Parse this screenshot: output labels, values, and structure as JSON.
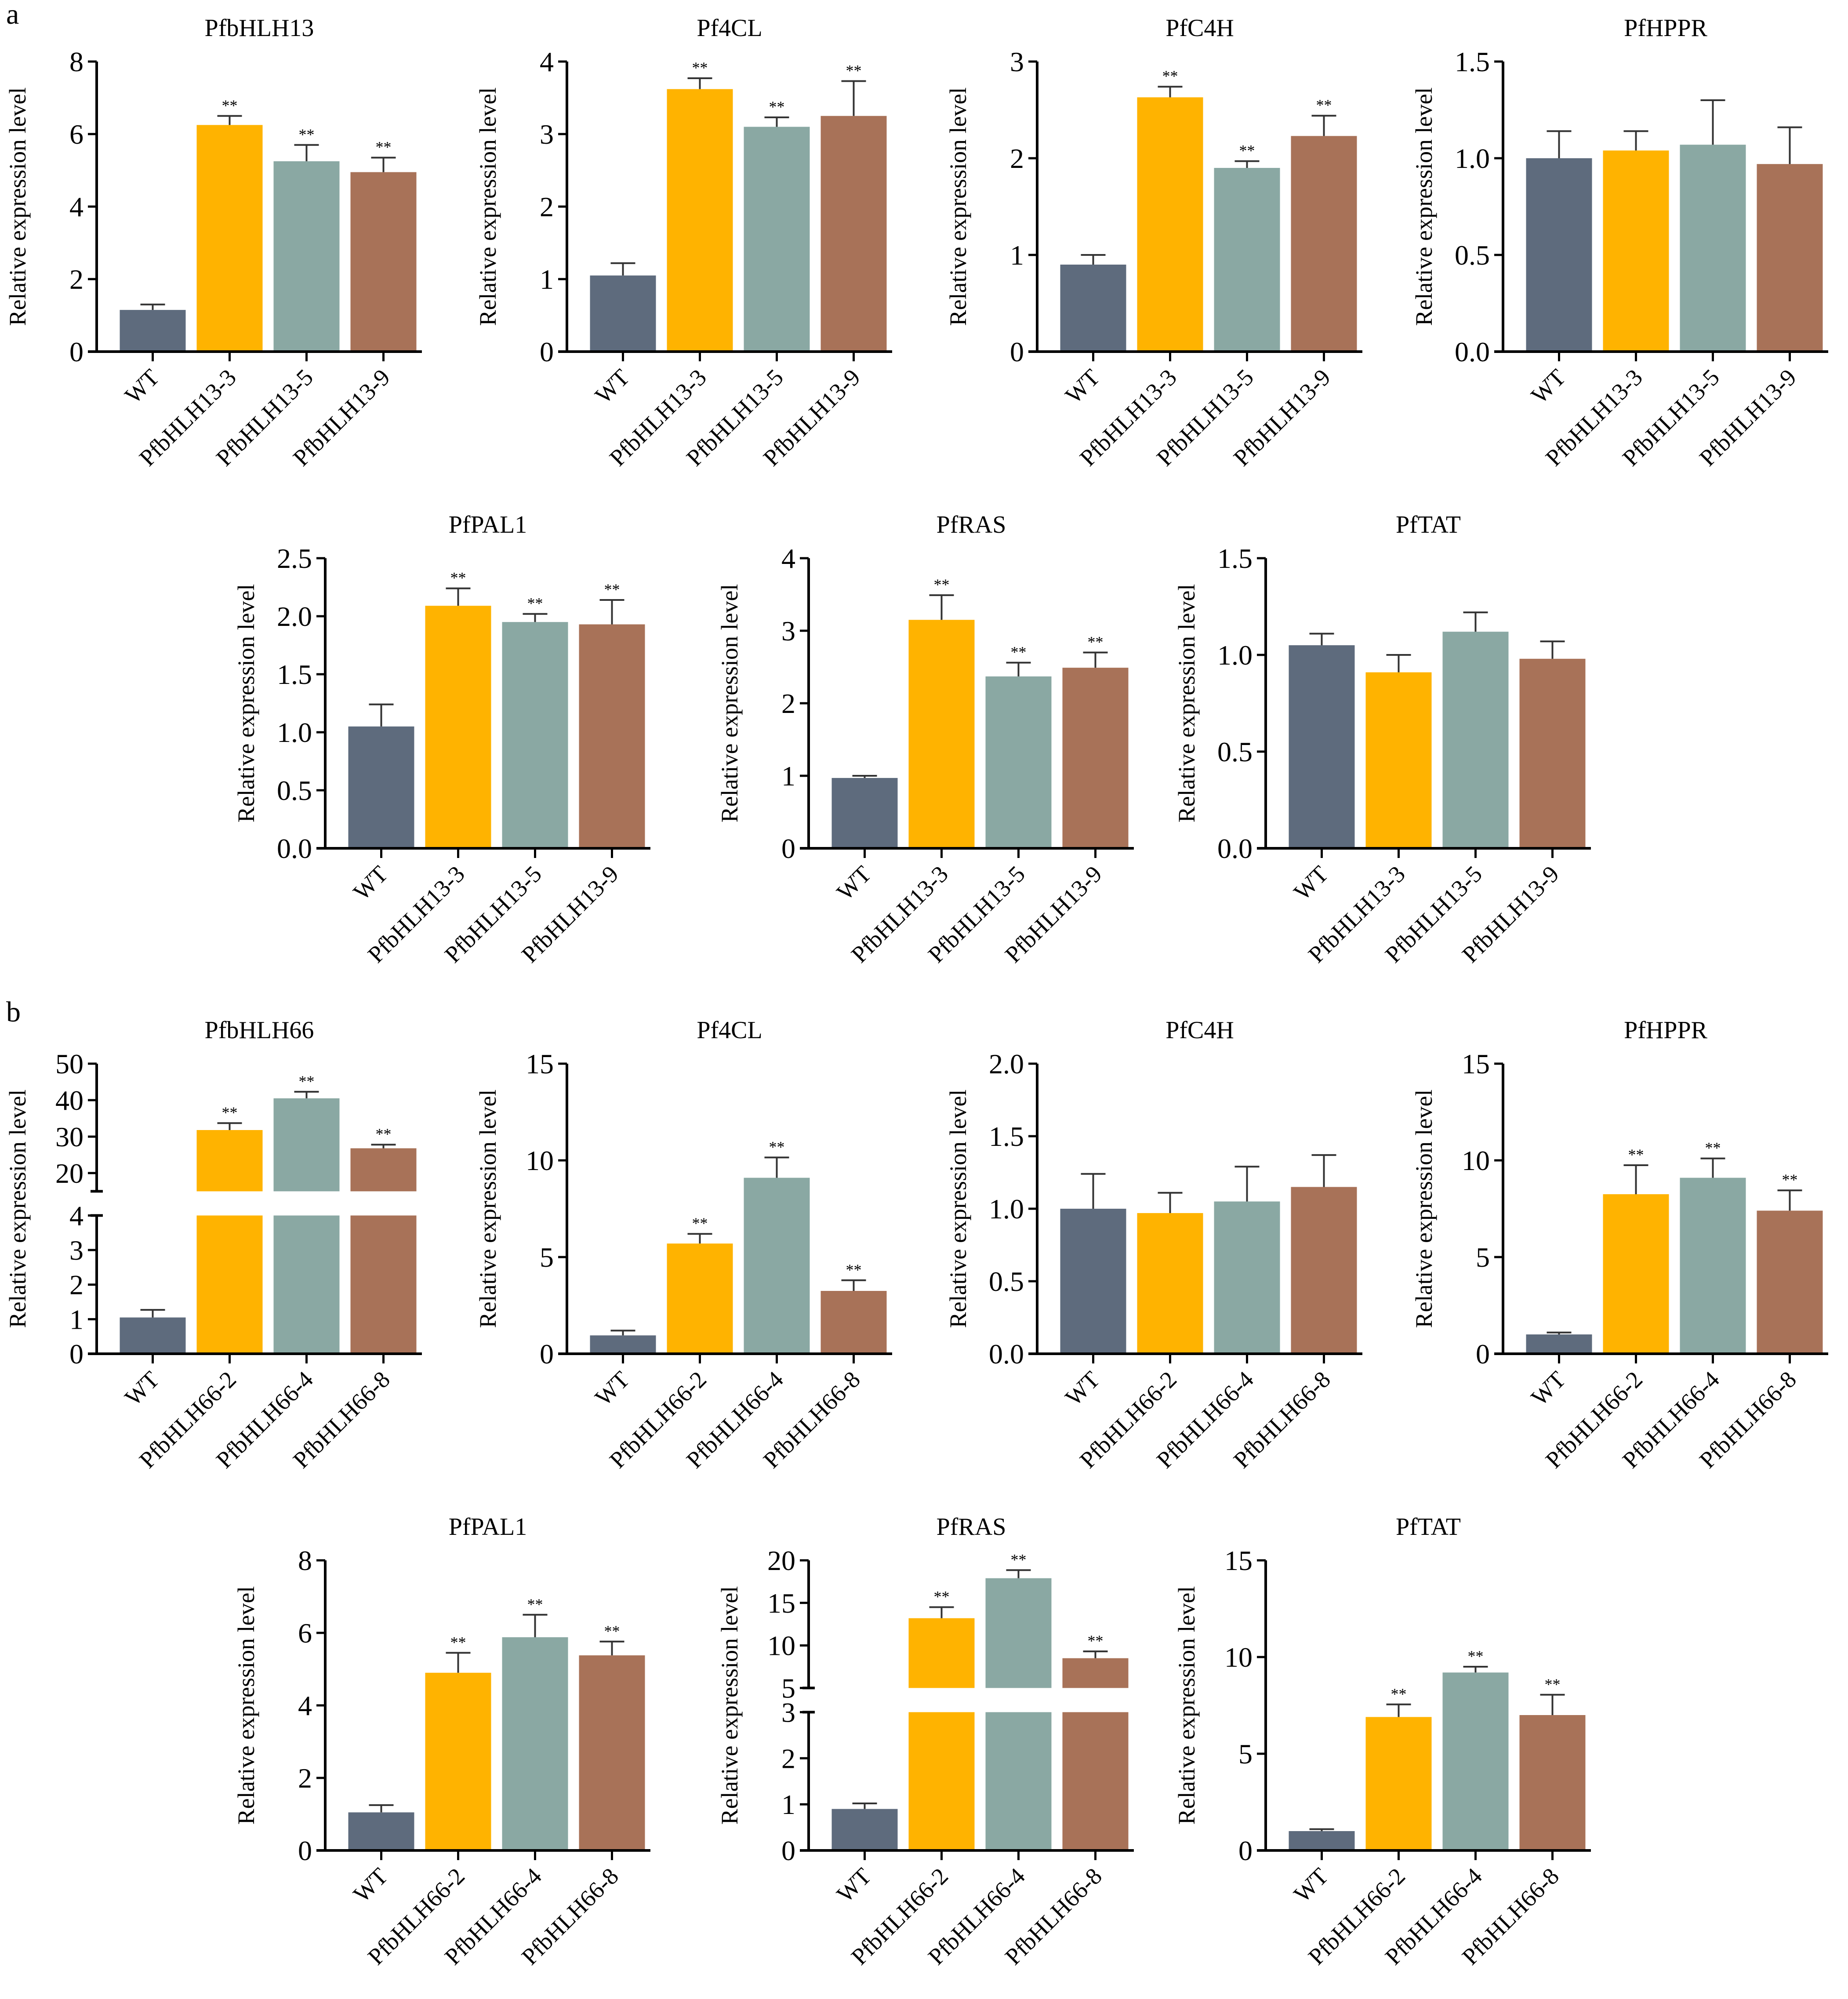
{
  "figure": {
    "panels": [
      {
        "letter": "a"
      },
      {
        "letter": "b"
      }
    ],
    "colors": [
      "#5E6B7D",
      "#FFB300",
      "#8AA8A3",
      "#A87258"
    ],
    "errorbar_color": "#333333"
  },
  "chart_data": [
    {
      "panel": "a",
      "type": "bar",
      "title": "PfbHLH13",
      "categories": [
        "WT",
        "PfbHLH13-3",
        "PfbHLH13-5",
        "PfbHLH13-9"
      ],
      "values": [
        1.15,
        6.25,
        5.25,
        4.95
      ],
      "errors": [
        0.15,
        0.25,
        0.45,
        0.4
      ],
      "significance": [
        "",
        "**",
        "**",
        "**"
      ],
      "xlabel": "",
      "ylabel": "Relative expression level",
      "ylim": [
        0,
        8
      ],
      "yticks": [
        "0",
        "2",
        "4",
        "6",
        "8"
      ],
      "ytick_values": [
        0,
        2,
        4,
        6,
        8
      ]
    },
    {
      "panel": "a",
      "type": "bar",
      "title": "Pf4CL",
      "categories": [
        "WT",
        "PfbHLH13-3",
        "PfbHLH13-5",
        "PfbHLH13-9"
      ],
      "values": [
        1.05,
        3.62,
        3.1,
        3.25
      ],
      "errors": [
        0.17,
        0.15,
        0.13,
        0.48
      ],
      "significance": [
        "",
        "**",
        "**",
        "**"
      ],
      "xlabel": "",
      "ylabel": "Relative expression level",
      "ylim": [
        0,
        4
      ],
      "yticks": [
        "0",
        "1",
        "2",
        "3",
        "4"
      ],
      "ytick_values": [
        0,
        1,
        2,
        3,
        4
      ]
    },
    {
      "panel": "a",
      "type": "bar",
      "title": "PfC4H",
      "categories": [
        "WT",
        "PfbHLH13-3",
        "PfbHLH13-5",
        "PfbHLH13-9"
      ],
      "values": [
        0.9,
        2.63,
        1.9,
        2.23
      ],
      "errors": [
        0.1,
        0.11,
        0.07,
        0.21
      ],
      "significance": [
        "",
        "**",
        "**",
        "**"
      ],
      "xlabel": "",
      "ylabel": "Relative expression level",
      "ylim": [
        0,
        3
      ],
      "yticks": [
        "0",
        "1",
        "2",
        "3"
      ],
      "ytick_values": [
        0,
        1,
        2,
        3
      ]
    },
    {
      "panel": "a",
      "type": "bar",
      "title": "PfHPPR",
      "categories": [
        "WT",
        "PfbHLH13-3",
        "PfbHLH13-5",
        "PfbHLH13-9"
      ],
      "values": [
        1.0,
        1.04,
        1.07,
        0.97
      ],
      "errors": [
        0.14,
        0.1,
        0.23,
        0.19
      ],
      "significance": [
        "",
        "",
        "",
        ""
      ],
      "xlabel": "",
      "ylabel": "Relative expression level",
      "ylim": [
        0,
        1.5
      ],
      "yticks": [
        "0.0",
        "0.5",
        "1.0",
        "1.5"
      ],
      "ytick_values": [
        0,
        0.5,
        1.0,
        1.5
      ]
    },
    {
      "panel": "a",
      "type": "bar",
      "title": "PfPAL1",
      "categories": [
        "WT",
        "PfbHLH13-3",
        "PfbHLH13-5",
        "PfbHLH13-9"
      ],
      "values": [
        1.05,
        2.09,
        1.95,
        1.93
      ],
      "errors": [
        0.19,
        0.15,
        0.07,
        0.21
      ],
      "significance": [
        "",
        "**",
        "**",
        "**"
      ],
      "xlabel": "",
      "ylabel": "Relative expression level",
      "ylim": [
        0,
        2.5
      ],
      "yticks": [
        "0.0",
        "0.5",
        "1.0",
        "1.5",
        "2.0",
        "2.5"
      ],
      "ytick_values": [
        0,
        0.5,
        1.0,
        1.5,
        2.0,
        2.5
      ]
    },
    {
      "panel": "a",
      "type": "bar",
      "title": "PfRAS",
      "categories": [
        "WT",
        "PfbHLH13-3",
        "PfbHLH13-5",
        "PfbHLH13-9"
      ],
      "values": [
        0.97,
        3.15,
        2.37,
        2.49
      ],
      "errors": [
        0.03,
        0.34,
        0.19,
        0.21
      ],
      "significance": [
        "",
        "**",
        "**",
        "**"
      ],
      "xlabel": "",
      "ylabel": "Relative expression level",
      "ylim": [
        0,
        4
      ],
      "yticks": [
        "0",
        "1",
        "2",
        "3",
        "4"
      ],
      "ytick_values": [
        0,
        1,
        2,
        3,
        4
      ]
    },
    {
      "panel": "a",
      "type": "bar",
      "title": "PfTAT",
      "categories": [
        "WT",
        "PfbHLH13-3",
        "PfbHLH13-5",
        "PfbHLH13-9"
      ],
      "values": [
        1.05,
        0.91,
        1.12,
        0.98
      ],
      "errors": [
        0.06,
        0.09,
        0.1,
        0.09
      ],
      "significance": [
        "",
        "",
        "",
        ""
      ],
      "xlabel": "",
      "ylabel": "Relative expression level",
      "ylim": [
        0,
        1.5
      ],
      "yticks": [
        "0.0",
        "0.5",
        "1.0",
        "1.5"
      ],
      "ytick_values": [
        0,
        0.5,
        1.0,
        1.5
      ]
    },
    {
      "panel": "b",
      "type": "bar",
      "title": "PfbHLH66",
      "categories": [
        "WT",
        "PfbHLH66-2",
        "PfbHLH66-4",
        "PfbHLH66-8"
      ],
      "values": [
        1.05,
        31.8,
        40.5,
        26.8
      ],
      "errors": [
        0.22,
        1.9,
        1.8,
        1.0
      ],
      "significance": [
        "",
        "**",
        "**",
        "**"
      ],
      "xlabel": "",
      "ylabel": "Relative expression level",
      "broken_axis": {
        "lower": [
          0,
          4
        ],
        "upper": [
          15,
          50
        ]
      },
      "yticks": [
        "0",
        "1",
        "2",
        "3",
        "4",
        "20",
        "30",
        "40",
        "50"
      ],
      "ytick_values": [
        0,
        1,
        2,
        3,
        4,
        20,
        30,
        40,
        50
      ]
    },
    {
      "panel": "b",
      "type": "bar",
      "title": "Pf4CL",
      "categories": [
        "WT",
        "PfbHLH66-2",
        "PfbHLH66-4",
        "PfbHLH66-8"
      ],
      "values": [
        0.95,
        5.7,
        9.1,
        3.25
      ],
      "errors": [
        0.25,
        0.5,
        1.05,
        0.55
      ],
      "significance": [
        "",
        "**",
        "**",
        "**"
      ],
      "xlabel": "",
      "ylabel": "Relative expression level",
      "ylim": [
        0,
        15
      ],
      "yticks": [
        "0",
        "5",
        "10",
        "15"
      ],
      "ytick_values": [
        0,
        5,
        10,
        15
      ]
    },
    {
      "panel": "b",
      "type": "bar",
      "title": "PfC4H",
      "categories": [
        "WT",
        "PfbHLH66-2",
        "PfbHLH66-4",
        "PfbHLH66-8"
      ],
      "values": [
        1.0,
        0.97,
        1.05,
        1.15
      ],
      "errors": [
        0.24,
        0.14,
        0.24,
        0.22
      ],
      "significance": [
        "",
        "",
        "",
        ""
      ],
      "xlabel": "",
      "ylabel": "Relative expression level",
      "ylim": [
        0,
        2.0
      ],
      "yticks": [
        "0.0",
        "0.5",
        "1.0",
        "1.5",
        "2.0"
      ],
      "ytick_values": [
        0,
        0.5,
        1.0,
        1.5,
        2.0
      ]
    },
    {
      "panel": "b",
      "type": "bar",
      "title": "PfHPPR",
      "categories": [
        "WT",
        "PfbHLH66-2",
        "PfbHLH66-4",
        "PfbHLH66-8"
      ],
      "values": [
        1.0,
        8.25,
        9.1,
        7.4
      ],
      "errors": [
        0.1,
        1.5,
        1.0,
        1.05
      ],
      "significance": [
        "",
        "**",
        "**",
        "**"
      ],
      "xlabel": "",
      "ylabel": "Relative expression level",
      "ylim": [
        0,
        15
      ],
      "yticks": [
        "0",
        "5",
        "10",
        "15"
      ],
      "ytick_values": [
        0,
        5,
        10,
        15
      ]
    },
    {
      "panel": "b",
      "type": "bar",
      "title": "PfPAL1",
      "categories": [
        "WT",
        "PfbHLH66-2",
        "PfbHLH66-4",
        "PfbHLH66-8"
      ],
      "values": [
        1.05,
        4.9,
        5.88,
        5.38
      ],
      "errors": [
        0.2,
        0.55,
        0.62,
        0.38
      ],
      "significance": [
        "",
        "**",
        "**",
        "**"
      ],
      "xlabel": "",
      "ylabel": "Relative expression level",
      "ylim": [
        0,
        8
      ],
      "yticks": [
        "0",
        "2",
        "4",
        "6",
        "8"
      ],
      "ytick_values": [
        0,
        2,
        4,
        6,
        8
      ]
    },
    {
      "panel": "b",
      "type": "bar",
      "title": "PfRAS",
      "categories": [
        "WT",
        "PfbHLH66-2",
        "PfbHLH66-4",
        "PfbHLH66-8"
      ],
      "values": [
        0.9,
        13.2,
        17.9,
        8.5
      ],
      "errors": [
        0.12,
        1.3,
        0.95,
        0.8
      ],
      "significance": [
        "",
        "**",
        "**",
        "**"
      ],
      "xlabel": "",
      "ylabel": "Relative expression level",
      "broken_axis": {
        "lower": [
          0,
          3
        ],
        "upper": [
          5,
          20
        ]
      },
      "yticks": [
        "0",
        "1",
        "2",
        "3",
        "5",
        "10",
        "15",
        "20"
      ],
      "ytick_values": [
        0,
        1,
        2,
        3,
        5,
        10,
        15,
        20
      ]
    },
    {
      "panel": "b",
      "type": "bar",
      "title": "PfTAT",
      "categories": [
        "WT",
        "PfbHLH66-2",
        "PfbHLH66-4",
        "PfbHLH66-8"
      ],
      "values": [
        1.0,
        6.9,
        9.2,
        7.0
      ],
      "errors": [
        0.1,
        0.65,
        0.3,
        1.05
      ],
      "significance": [
        "",
        "**",
        "**",
        "**"
      ],
      "xlabel": "",
      "ylabel": "Relative expression level",
      "ylim": [
        0,
        15
      ],
      "yticks": [
        "0",
        "5",
        "10",
        "15"
      ],
      "ytick_values": [
        0,
        5,
        10,
        15
      ]
    }
  ]
}
